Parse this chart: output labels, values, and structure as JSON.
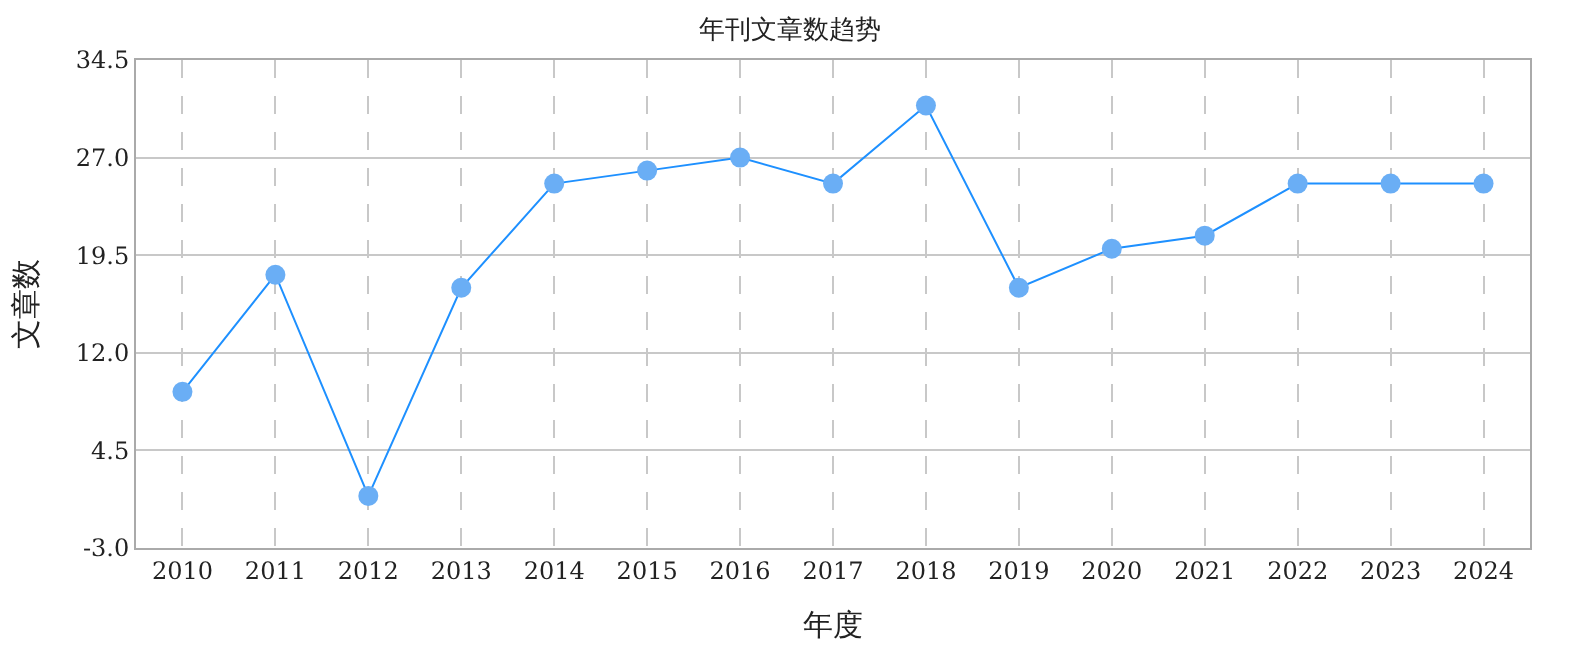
{
  "chart_data": {
    "type": "line",
    "title": "年刊文章数趋势",
    "xlabel": "年度",
    "ylabel": "文章数",
    "categories": [
      "2010",
      "2011",
      "2012",
      "2013",
      "2014",
      "2015",
      "2016",
      "2017",
      "2018",
      "2019",
      "2020",
      "2021",
      "2022",
      "2023",
      "2024"
    ],
    "series": [
      {
        "color": "#1e90ff",
        "values": [
          9,
          18,
          1,
          17,
          25,
          26,
          27,
          25,
          31,
          17,
          20,
          21,
          25,
          25,
          25
        ]
      }
    ],
    "ylim": [
      -3.0,
      34.5
    ],
    "yticks": [
      {
        "value": -3.0,
        "label": "-3.0"
      },
      {
        "value": 4.5,
        "label": "4.5"
      },
      {
        "value": 12.0,
        "label": "12.0"
      },
      {
        "value": 19.5,
        "label": "19.5"
      },
      {
        "value": 27.0,
        "label": "27.0"
      },
      {
        "value": 34.5,
        "label": "34.5"
      }
    ],
    "grid": true,
    "marker": "circle"
  }
}
